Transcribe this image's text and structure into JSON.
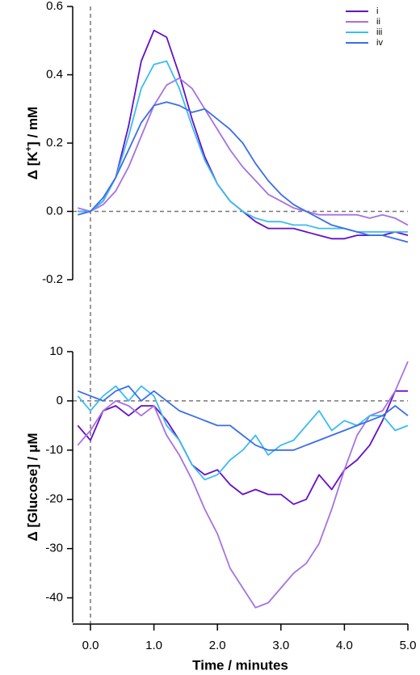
{
  "chart_data": [
    {
      "type": "line",
      "ylabel": [
        "Δ [K",
        "+",
        "] / mM"
      ],
      "x": [
        -0.2,
        0,
        0.2,
        0.4,
        0.6,
        0.8,
        1.0,
        1.2,
        1.4,
        1.6,
        1.8,
        2.0,
        2.2,
        2.4,
        2.6,
        2.8,
        3.0,
        3.2,
        3.4,
        3.6,
        3.8,
        4.0,
        4.2,
        4.4,
        4.6,
        4.8,
        5.0
      ],
      "xlim": [
        -0.28,
        5.0
      ],
      "ylim": [
        -0.2,
        0.6
      ],
      "yticks": [
        -0.2,
        {
          "value": 0,
          "label": "0.0"
        },
        0.2,
        0.4,
        0.6
      ],
      "hline": 0,
      "vline": 0,
      "legend": "upper right",
      "series": [
        {
          "name": "i",
          "color": "#6410c8",
          "values": [
            0.0,
            0.0,
            0.03,
            0.1,
            0.25,
            0.44,
            0.53,
            0.51,
            0.4,
            0.27,
            0.16,
            0.08,
            0.03,
            0.0,
            -0.03,
            -0.05,
            -0.05,
            -0.05,
            -0.06,
            -0.07,
            -0.08,
            -0.08,
            -0.07,
            -0.07,
            -0.07,
            -0.06,
            -0.07
          ]
        },
        {
          "name": "ii",
          "color": "#a672e0",
          "values": [
            0.01,
            0.0,
            0.02,
            0.06,
            0.13,
            0.22,
            0.31,
            0.37,
            0.39,
            0.36,
            0.3,
            0.24,
            0.18,
            0.13,
            0.09,
            0.05,
            0.03,
            0.01,
            0.0,
            -0.01,
            -0.01,
            -0.01,
            -0.01,
            -0.02,
            -0.01,
            -0.02,
            -0.04
          ]
        },
        {
          "name": "iii",
          "color": "#3cbcf0",
          "values": [
            0.0,
            0.0,
            0.03,
            0.1,
            0.22,
            0.36,
            0.43,
            0.44,
            0.36,
            0.25,
            0.15,
            0.08,
            0.03,
            0.0,
            -0.02,
            -0.03,
            -0.03,
            -0.04,
            -0.04,
            -0.05,
            -0.05,
            -0.05,
            -0.06,
            -0.06,
            -0.06,
            -0.06,
            -0.06
          ]
        },
        {
          "name": "iv",
          "color": "#3a6ee8",
          "values": [
            -0.01,
            0.0,
            0.04,
            0.1,
            0.18,
            0.26,
            0.31,
            0.32,
            0.31,
            0.29,
            0.3,
            0.27,
            0.24,
            0.2,
            0.14,
            0.09,
            0.05,
            0.02,
            0.0,
            -0.02,
            -0.04,
            -0.05,
            -0.06,
            -0.07,
            -0.07,
            -0.08,
            -0.09
          ]
        }
      ]
    },
    {
      "type": "line",
      "ylabel": [
        "Δ [Glucose] / μM"
      ],
      "xlabel": "Time / minutes",
      "x": [
        -0.2,
        0,
        0.2,
        0.4,
        0.6,
        0.8,
        1.0,
        1.2,
        1.4,
        1.6,
        1.8,
        2.0,
        2.2,
        2.4,
        2.6,
        2.8,
        3.0,
        3.2,
        3.4,
        3.6,
        3.8,
        4.0,
        4.2,
        4.4,
        4.6,
        4.8,
        5.0
      ],
      "xlim": [
        -0.28,
        5.0
      ],
      "xticks": [
        {
          "value": 0,
          "label": "0.0"
        },
        {
          "value": 1,
          "label": "1.0"
        },
        {
          "value": 2,
          "label": "2.0"
        },
        {
          "value": 3,
          "label": "3.0"
        },
        {
          "value": 4,
          "label": "4.0"
        },
        {
          "value": 5,
          "label": "5.0"
        }
      ],
      "ylim": [
        -45,
        10
      ],
      "yticks": [
        -40,
        -30,
        -20,
        -10,
        0,
        10
      ],
      "hline": 0,
      "vline": 0,
      "series": [
        {
          "name": "i",
          "color": "#6410c8",
          "values": [
            -5,
            -8,
            -2,
            -1,
            -3,
            -1,
            -1,
            -4,
            -8,
            -13,
            -15,
            -14,
            -17,
            -19,
            -18,
            -19,
            -19,
            -21,
            -20,
            -15,
            -18,
            -14,
            -12,
            -9,
            -4,
            2,
            2
          ]
        },
        {
          "name": "ii",
          "color": "#a672e0",
          "values": [
            -9,
            -6,
            -2,
            0,
            -1,
            -3,
            -1,
            -7,
            -11,
            -16,
            -22,
            -27,
            -34,
            -38,
            -42,
            -41,
            -38,
            -35,
            -33,
            -29,
            -22,
            -14,
            -7,
            -3,
            -2,
            2,
            8
          ]
        },
        {
          "name": "iii",
          "color": "#3cbcf0",
          "values": [
            1,
            -2,
            1,
            3,
            0,
            3,
            1,
            -5,
            -8,
            -13,
            -16,
            -15,
            -12,
            -10,
            -7,
            -11,
            -9,
            -8,
            -5,
            -2,
            -6,
            -4,
            -5,
            -3,
            -3,
            -6,
            -5
          ]
        },
        {
          "name": "iv",
          "color": "#3a6ee8",
          "values": [
            2,
            1,
            0,
            2,
            3,
            0,
            2,
            0,
            -2,
            -3,
            -4,
            -5,
            -5,
            -7,
            -9,
            -10,
            -10,
            -10,
            -9,
            -8,
            -7,
            -6,
            -5,
            -4,
            -3,
            -1,
            -3
          ]
        }
      ]
    }
  ]
}
